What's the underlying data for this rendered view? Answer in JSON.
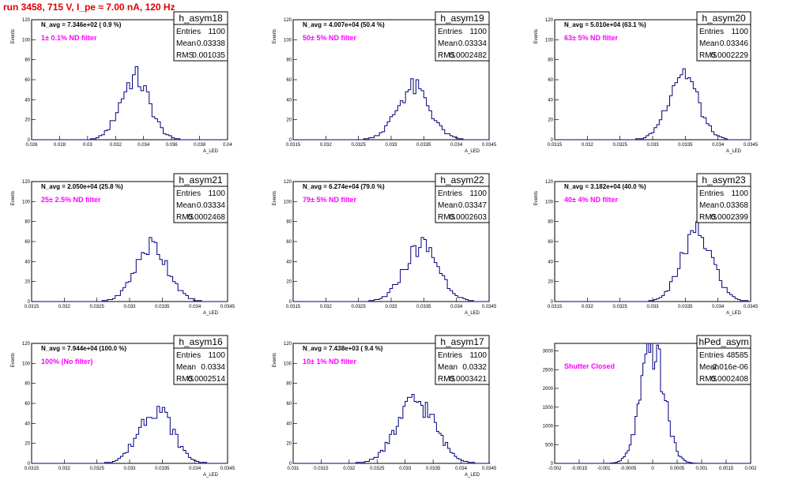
{
  "page": {
    "title": "run 3458,   715 V, I_pe ≈ 7.00 nA, 120 Hz"
  },
  "colors": {
    "title": "#e00000",
    "histogram": "#000080",
    "annotation": "#ff00ff",
    "frame": "#000000"
  },
  "stat_labels": {
    "entries": "Entries",
    "mean": "Mean",
    "rms": "RMS"
  },
  "chart_data": [
    {
      "type": "histogram",
      "name": "h_asym18",
      "ylabel": "Events",
      "xlabel": "A_LED",
      "ylim": [
        0,
        120
      ],
      "xlim": [
        0.026,
        0.04
      ],
      "yticks": [
        "0",
        "20",
        "40",
        "60",
        "80",
        "100",
        "120"
      ],
      "xticks": [
        "0.026",
        "0.028",
        "0.03",
        "0.032",
        "0.034",
        "0.036",
        "0.038",
        "0.04"
      ],
      "grid": false,
      "stats": {
        "entries": "1100",
        "mean": "0.03338",
        "rms": "0.001035"
      },
      "annotation_navg": "N_avg = 7.346e+02 ( 0.9 %)",
      "annotation_filter": "1± 0.1% ND filter",
      "mean": 0.03338,
      "rms": 0.001035,
      "peak": 62,
      "bin": 0.0002
    },
    {
      "type": "histogram",
      "name": "h_asym19",
      "ylabel": "Events",
      "xlabel": "A_LED",
      "ylim": [
        0,
        120
      ],
      "xlim": [
        0.0315,
        0.0345
      ],
      "yticks": [
        "0",
        "20",
        "40",
        "60",
        "80",
        "100",
        "120"
      ],
      "xticks": [
        "0.0315",
        "0.032",
        "0.0325",
        "0.033",
        "0.0335",
        "0.034",
        "0.0345"
      ],
      "grid": false,
      "stats": {
        "entries": "1100",
        "mean": "0.03334",
        "rms": "0.0002482"
      },
      "annotation_navg": "N_avg = 4.007e+04 (50.4 %)",
      "annotation_filter": "50± 5% ND filter",
      "mean": 0.03334,
      "rms": 0.0002482,
      "peak": 52,
      "bin": 4e-05
    },
    {
      "type": "histogram",
      "name": "h_asym20",
      "ylabel": "Events",
      "xlabel": "A_LED",
      "ylim": [
        0,
        120
      ],
      "xlim": [
        0.0315,
        0.0345
      ],
      "yticks": [
        "0",
        "20",
        "40",
        "60",
        "80",
        "100",
        "120"
      ],
      "xticks": [
        "0.0315",
        "0.032",
        "0.0325",
        "0.033",
        "0.0335",
        "0.034",
        "0.0345"
      ],
      "grid": false,
      "stats": {
        "entries": "1100",
        "mean": "0.03346",
        "rms": "0.0002229"
      },
      "annotation_navg": "N_avg = 5.010e+04 (63.1 %)",
      "annotation_filter": "63± 5% ND filter",
      "mean": 0.03346,
      "rms": 0.0002229,
      "peak": 68,
      "bin": 4e-05
    },
    {
      "type": "histogram",
      "name": "h_asym21",
      "ylabel": "Events",
      "xlabel": "A_LED",
      "ylim": [
        0,
        120
      ],
      "xlim": [
        0.0315,
        0.0345
      ],
      "yticks": [
        "0",
        "20",
        "40",
        "60",
        "80",
        "100",
        "120"
      ],
      "xticks": [
        "0.0315",
        "0.032",
        "0.0325",
        "0.033",
        "0.0335",
        "0.034",
        "0.0345"
      ],
      "grid": false,
      "stats": {
        "entries": "1100",
        "mean": "0.03334",
        "rms": "0.0002468"
      },
      "annotation_navg": "N_avg = 2.050e+04 (25.8 %)",
      "annotation_filter": "25± 2.5% ND filter",
      "mean": 0.03334,
      "rms": 0.0002468,
      "peak": 56,
      "bin": 4e-05
    },
    {
      "type": "histogram",
      "name": "h_asym22",
      "ylabel": "Events",
      "xlabel": "A_LED",
      "ylim": [
        0,
        120
      ],
      "xlim": [
        0.0315,
        0.0345
      ],
      "yticks": [
        "0",
        "20",
        "40",
        "60",
        "80",
        "100",
        "120"
      ],
      "xticks": [
        "0.0315",
        "0.032",
        "0.0325",
        "0.033",
        "0.0335",
        "0.034",
        "0.0345"
      ],
      "grid": false,
      "stats": {
        "entries": "1100",
        "mean": "0.03347",
        "rms": "0.0002603"
      },
      "annotation_navg": "N_avg = 6.274e+04 (79.0 %)",
      "annotation_filter": "79± 5% ND filter",
      "mean": 0.03347,
      "rms": 0.0002603,
      "peak": 56,
      "bin": 4e-05
    },
    {
      "type": "histogram",
      "name": "h_asym23",
      "ylabel": "Events",
      "xlabel": "A_LED",
      "ylim": [
        0,
        120
      ],
      "xlim": [
        0.0315,
        0.0345
      ],
      "yticks": [
        "0",
        "20",
        "40",
        "60",
        "80",
        "100",
        "120"
      ],
      "xticks": [
        "0.0315",
        "0.032",
        "0.0325",
        "0.033",
        "0.0335",
        "0.034",
        "0.0345"
      ],
      "grid": false,
      "stats": {
        "entries": "1100",
        "mean": "0.03368",
        "rms": "0.0002399"
      },
      "annotation_navg": "N_avg = 3.182e+04 (40.0 %)",
      "annotation_filter": "40± 4% ND filter",
      "mean": 0.03368,
      "rms": 0.0002399,
      "peak": 68,
      "bin": 4e-05
    },
    {
      "type": "histogram",
      "name": "h_asym16",
      "ylabel": "Events",
      "xlabel": "A_LED",
      "ylim": [
        0,
        120
      ],
      "xlim": [
        0.0315,
        0.0345
      ],
      "yticks": [
        "0",
        "20",
        "40",
        "60",
        "80",
        "100",
        "120"
      ],
      "xticks": [
        "0.0315",
        "0.032",
        "0.0325",
        "0.033",
        "0.0335",
        "0.034",
        "0.0345"
      ],
      "grid": false,
      "stats": {
        "entries": "1100",
        "mean": "0.0334",
        "rms": "0.0002514"
      },
      "annotation_navg": "N_avg = 7.944e+04 (100.0 %)",
      "annotation_filter": "100% (No filter)",
      "mean": 0.0334,
      "rms": 0.0002514,
      "peak": 56,
      "bin": 4e-05
    },
    {
      "type": "histogram",
      "name": "h_asym17",
      "ylabel": "Events",
      "xlabel": "A_LED",
      "ylim": [
        0,
        120
      ],
      "xlim": [
        0.031,
        0.0345
      ],
      "yticks": [
        "0",
        "20",
        "40",
        "60",
        "80",
        "100",
        "120"
      ],
      "xticks": [
        "0.031",
        "0.0315",
        "0.032",
        "0.0325",
        "0.033",
        "0.0335",
        "0.034",
        "0.0345"
      ],
      "grid": false,
      "stats": {
        "entries": "1100",
        "mean": "0.0332",
        "rms": "0.0003421"
      },
      "annotation_navg": "N_avg = 7.438e+03 ( 9.4 %)",
      "annotation_filter": "10± 1% ND filter",
      "mean": 0.0332,
      "rms": 0.0003421,
      "peak": 62,
      "bin": 4e-05
    },
    {
      "type": "histogram",
      "name": "hPed_asym",
      "ylabel": "",
      "xlabel": "",
      "ylim": [
        0,
        3200
      ],
      "xlim": [
        -0.002,
        0.002
      ],
      "yticks": [
        "0",
        "500",
        "1000",
        "1500",
        "2000",
        "2500",
        "3000"
      ],
      "xticks": [
        "-0.002",
        "-0.0015",
        "-0.001",
        "-0.0005",
        "0",
        "0.0005",
        "0.001",
        "0.0015",
        "0.002"
      ],
      "grid": false,
      "stats": {
        "entries": "48585",
        "mean": "-2.016e-06",
        "rms": "0.0002408"
      },
      "annotation_navg": "",
      "annotation_filter": "Shutter Closed",
      "mean": -2.016e-06,
      "rms": 0.0002408,
      "peak": 3050,
      "bin": 4e-05
    }
  ]
}
